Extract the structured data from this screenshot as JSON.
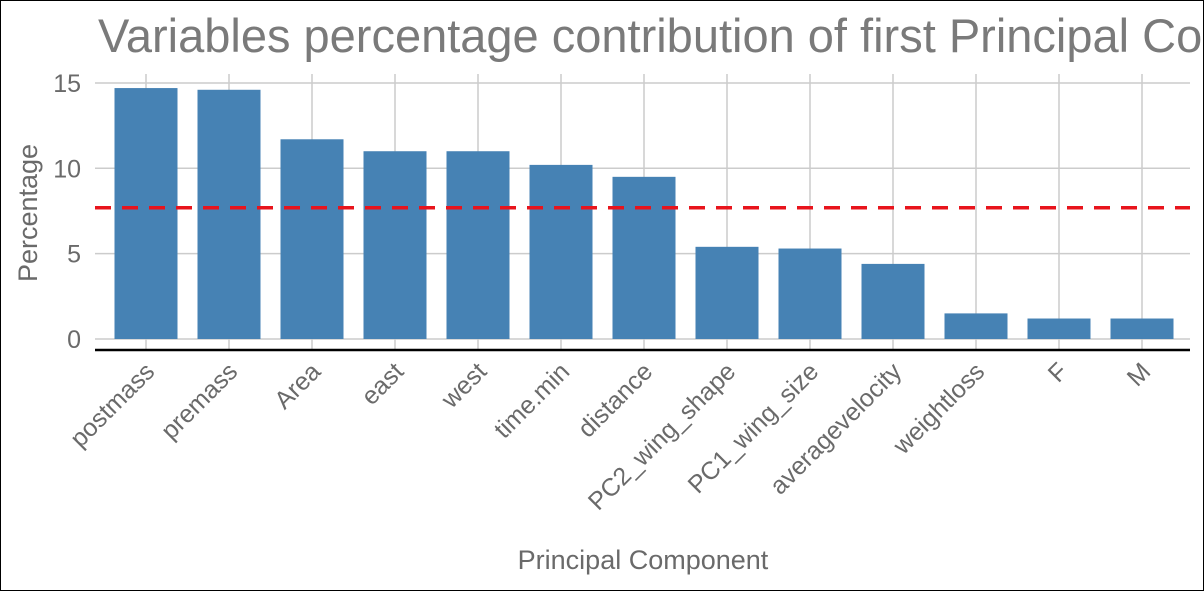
{
  "chart_data": {
    "type": "bar",
    "title": "Variables percentage contribution of first Principal Components",
    "xlabel": "Principal Component",
    "ylabel": "Percentage",
    "categories": [
      "postmass",
      "premass",
      "Area",
      "east",
      "west",
      "time.min",
      "distance",
      "PC2_wing_shape",
      "PC1_wing_size",
      "averagevelocity",
      "weightloss",
      "F",
      "M"
    ],
    "values": [
      14.7,
      14.6,
      11.7,
      11.0,
      11.0,
      10.2,
      9.5,
      5.4,
      5.3,
      4.4,
      1.5,
      1.2,
      1.2
    ],
    "reference_line": {
      "value": 7.69,
      "style": "dashed",
      "color": "#e8141c"
    },
    "ylim": [
      -0.7,
      15.8
    ],
    "yticks": [
      0,
      5,
      10,
      15
    ],
    "bar_color": "#4682b4",
    "grid": true,
    "legend": "none"
  }
}
